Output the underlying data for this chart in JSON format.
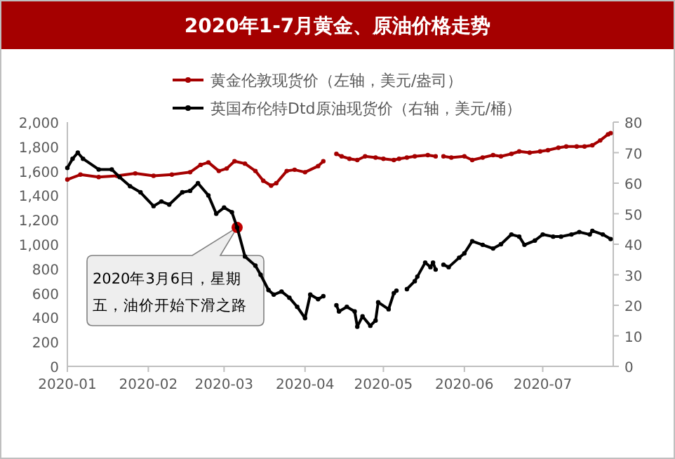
{
  "chart_data": {
    "type": "line",
    "title": "2020年1-7月黄金、原油价格走势",
    "marker": "circle",
    "legend": "top",
    "grid": false,
    "xlim": [
      "2020-01-01",
      "2020-07-28"
    ],
    "xticks": [
      {
        "value": "2020-01-01",
        "label": "2020-01"
      },
      {
        "value": "2020-02-01",
        "label": "2020-02"
      },
      {
        "value": "2020-03-01",
        "label": "2020-03"
      },
      {
        "value": "2020-04-01",
        "label": "2020-04"
      },
      {
        "value": "2020-05-01",
        "label": "2020-05"
      },
      {
        "value": "2020-06-01",
        "label": "2020-06"
      },
      {
        "value": "2020-07-01",
        "label": "2020-07"
      }
    ],
    "ylim": [
      0,
      2000
    ],
    "yticks": [
      {
        "value": 0,
        "label": "0"
      },
      {
        "value": 200,
        "label": "200"
      },
      {
        "value": 400,
        "label": "400"
      },
      {
        "value": 600,
        "label": "600"
      },
      {
        "value": 800,
        "label": "800"
      },
      {
        "value": 1000,
        "label": "1,000"
      },
      {
        "value": 1200,
        "label": "1,200"
      },
      {
        "value": 1400,
        "label": "1,400"
      },
      {
        "value": 1600,
        "label": "1,600"
      },
      {
        "value": 1800,
        "label": "1,800"
      },
      {
        "value": 2000,
        "label": "2,000"
      }
    ],
    "y2lim": [
      0,
      80
    ],
    "y2ticks": [
      0,
      10,
      20,
      30,
      40,
      50,
      60,
      70,
      80
    ],
    "series": [
      {
        "name": "黄金伦敦现货价（左轴，美元/盎司）",
        "color": "#a50000",
        "x": [
          "2020-01-01",
          "2020-01-06",
          "2020-01-13",
          "2020-01-20",
          "2020-01-27",
          "2020-02-03",
          "2020-02-10",
          "2020-02-17",
          "2020-02-21",
          "2020-02-24",
          "2020-02-28",
          "2020-03-02",
          "2020-03-05",
          "2020-03-09",
          "2020-03-13",
          "2020-03-16",
          "2020-03-19",
          "2020-03-21",
          "2020-03-25",
          "2020-03-28",
          "2020-04-01",
          "2020-04-06",
          "2020-04-08",
          "2020-04-10",
          "2020-04-13",
          "2020-04-15",
          "2020-04-18",
          "2020-04-21",
          "2020-04-24",
          "2020-04-28",
          "2020-05-01",
          "2020-05-05",
          "2020-05-07",
          "2020-05-10",
          "2020-05-13",
          "2020-05-18",
          "2020-05-21",
          "2020-05-22",
          "2020-05-24",
          "2020-05-27",
          "2020-06-01",
          "2020-06-04",
          "2020-06-08",
          "2020-06-12",
          "2020-06-15",
          "2020-06-19",
          "2020-06-22",
          "2020-06-26",
          "2020-06-30",
          "2020-07-03",
          "2020-07-07",
          "2020-07-10",
          "2020-07-14",
          "2020-07-17",
          "2020-07-20",
          "2020-07-23",
          "2020-07-26",
          "2020-07-27"
        ],
        "values": [
          1530,
          1570,
          1550,
          1560,
          1580,
          1560,
          1570,
          1590,
          1650,
          1670,
          1600,
          1620,
          1680,
          1660,
          1600,
          1520,
          1480,
          1500,
          1600,
          1610,
          1590,
          1640,
          1680,
          null,
          1740,
          1720,
          1700,
          1690,
          1720,
          1710,
          1700,
          1690,
          1700,
          1710,
          1720,
          1730,
          1720,
          null,
          1720,
          1710,
          1720,
          1690,
          1710,
          1730,
          1720,
          1740,
          1760,
          1750,
          1760,
          1770,
          1790,
          1800,
          1800,
          1800,
          1810,
          1850,
          1900,
          1910
        ]
      },
      {
        "name": "英国布伦特Dtd原油现货价（右轴，美元/桶）",
        "color": "#000000",
        "axis": "y2",
        "x": [
          "2020-01-01",
          "2020-01-03",
          "2020-01-05",
          "2020-01-07",
          "2020-01-13",
          "2020-01-18",
          "2020-01-21",
          "2020-01-25",
          "2020-01-29",
          "2020-02-03",
          "2020-02-06",
          "2020-02-09",
          "2020-02-14",
          "2020-02-17",
          "2020-02-20",
          "2020-02-24",
          "2020-02-27",
          "2020-03-01",
          "2020-03-04",
          "2020-03-06",
          "2020-03-09",
          "2020-03-13",
          "2020-03-15",
          "2020-03-18",
          "2020-03-20",
          "2020-03-23",
          "2020-03-26",
          "2020-03-29",
          "2020-04-01",
          "2020-04-03",
          "2020-04-06",
          "2020-04-08",
          "2020-04-10",
          "2020-04-13",
          "2020-04-14",
          "2020-04-17",
          "2020-04-20",
          "2020-04-21",
          "2020-04-23",
          "2020-04-26",
          "2020-04-28",
          "2020-04-29",
          "2020-05-03",
          "2020-05-05",
          "2020-05-06",
          "2020-05-08",
          "2020-05-10",
          "2020-05-13",
          "2020-05-14",
          "2020-05-17",
          "2020-05-19",
          "2020-05-20",
          "2020-05-21",
          "2020-05-22",
          "2020-05-24",
          "2020-05-26",
          "2020-05-30",
          "2020-06-01",
          "2020-06-04",
          "2020-06-08",
          "2020-06-12",
          "2020-06-15",
          "2020-06-19",
          "2020-06-22",
          "2020-06-24",
          "2020-06-28",
          "2020-07-01",
          "2020-07-05",
          "2020-07-08",
          "2020-07-12",
          "2020-07-15",
          "2020-07-19",
          "2020-07-20",
          "2020-07-24",
          "2020-07-27"
        ],
        "values": [
          65,
          68,
          70,
          68,
          64.5,
          64.5,
          62,
          59,
          57,
          52.5,
          54,
          53,
          57,
          57.5,
          60,
          56,
          50,
          52,
          50.5,
          45.5,
          36,
          33,
          30,
          25,
          23.5,
          24.5,
          22.5,
          19.5,
          15.8,
          23.5,
          22,
          23,
          null,
          20,
          18,
          19.5,
          18,
          13,
          16.4,
          13.3,
          15,
          21,
          18.7,
          24,
          24.8,
          null,
          25.3,
          27.9,
          29.4,
          34,
          32.5,
          34,
          31.7,
          null,
          33.3,
          32.5,
          35.6,
          37,
          41,
          39.8,
          38.6,
          40,
          43.2,
          42.5,
          39.8,
          41.2,
          43.2,
          42.5,
          42.5,
          43.2,
          44,
          43.2,
          44.4,
          43.2,
          41.7
        ]
      }
    ],
    "annotations": [
      {
        "text": "2020年3月6日，星期五，油价开始下滑之路",
        "x": "2020-03-06",
        "y": 1137.5
      }
    ]
  }
}
